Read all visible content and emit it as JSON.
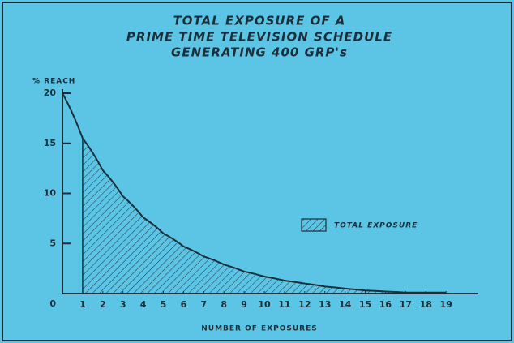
{
  "chart_data": {
    "type": "area",
    "title_lines": [
      "TOTAL EXPOSURE OF A",
      "PRIME TIME TELEVISION SCHEDULE",
      "GENERATING 400 GRP's"
    ],
    "y_label": "% REACH",
    "x_label": "NUMBER OF EXPOSURES",
    "x": [
      0,
      1,
      2,
      3,
      4,
      5,
      6,
      7,
      8,
      9,
      10,
      11,
      12,
      13,
      14,
      15,
      16,
      17,
      18,
      19
    ],
    "series": [
      {
        "name": "TOTAL EXPOSURE",
        "color": "#1b2f3a",
        "values": [
          20,
          15.5,
          12.3,
          9.7,
          7.6,
          6.0,
          4.7,
          3.7,
          2.9,
          2.2,
          1.7,
          1.3,
          1.0,
          0.7,
          0.5,
          0.3,
          0.2,
          0.1,
          0.1,
          0.1
        ]
      }
    ],
    "xlim": [
      0,
      20.6
    ],
    "ylim": [
      0,
      20
    ],
    "xticks": [
      1,
      2,
      3,
      4,
      5,
      6,
      7,
      8,
      9,
      10,
      11,
      12,
      13,
      14,
      15,
      16,
      17,
      18,
      19
    ],
    "yticks": [
      0,
      5,
      10,
      15,
      20
    ],
    "hatched": true
  }
}
